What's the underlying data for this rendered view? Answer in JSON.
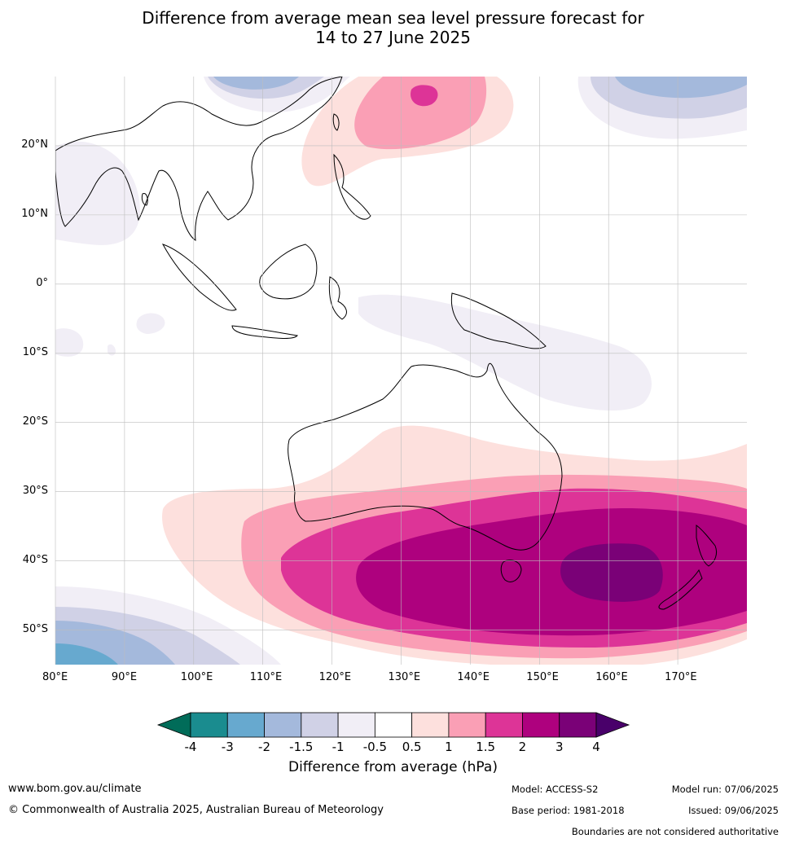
{
  "title": {
    "line1": "Difference from average mean sea level pressure forecast for",
    "line2": "14 to 27 June 2025"
  },
  "map": {
    "lon_range": [
      80,
      180
    ],
    "lat_range": [
      -55,
      30
    ],
    "lon_ticks": [
      "80°E",
      "90°E",
      "100°E",
      "110°E",
      "120°E",
      "130°E",
      "140°E",
      "150°E",
      "160°E",
      "170°E"
    ],
    "lat_ticks": [
      "20°N",
      "10°N",
      "0°",
      "10°S",
      "20°S",
      "30°S",
      "40°S",
      "50°S"
    ],
    "grid": true
  },
  "colorbar": {
    "label": "Difference from average (hPa)",
    "tick_labels": [
      "-4",
      "-3",
      "-2",
      "-1.5",
      "-1",
      "-0.5",
      "0.5",
      "1",
      "1.5",
      "2",
      "3",
      "4"
    ],
    "colors": [
      "#1a8c8f",
      "#67a9cf",
      "#a4b9dc",
      "#d0d1e6",
      "#f1eef6",
      "#ffffff",
      "#fde0dd",
      "#fa9fb5",
      "#dd3497",
      "#ae017e",
      "#7a0177"
    ],
    "under_color": "#016c59",
    "over_color": "#49006a"
  },
  "footer": {
    "website": "www.bom.gov.au/climate",
    "copyright": "© Commonwealth of Australia 2025, Australian Bureau of Meteorology",
    "model": "Model: ACCESS-S2",
    "base_period": "Base period: 1981-2018",
    "model_run": "Model run: 07/06/2025",
    "issued": "Issued: 09/06/2025",
    "disclaimer": "Boundaries are not considered authoritative"
  }
}
